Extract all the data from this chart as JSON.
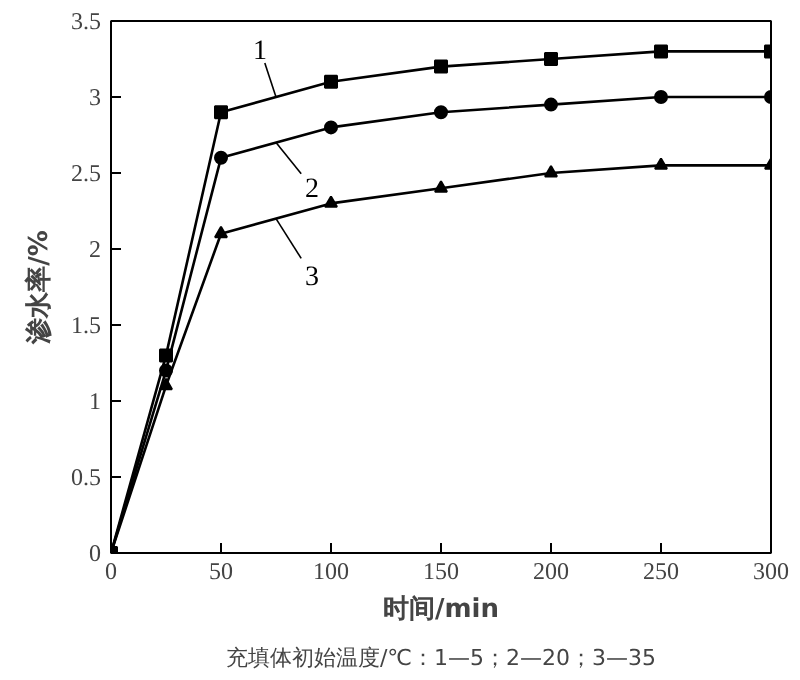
{
  "chart_data": {
    "type": "line",
    "xlabel": "时间/min",
    "ylabel": "渗水率/%",
    "x": [
      0,
      25,
      50,
      100,
      150,
      200,
      250,
      300
    ],
    "series": [
      {
        "name": "1",
        "color": "#000000",
        "marker": "square",
        "values": [
          0,
          1.3,
          2.9,
          3.1,
          3.2,
          3.25,
          3.3,
          3.3
        ]
      },
      {
        "name": "2",
        "color": "#000000",
        "marker": "circle",
        "values": [
          0,
          1.2,
          2.6,
          2.8,
          2.9,
          2.95,
          3.0,
          3.0
        ]
      },
      {
        "name": "3",
        "color": "#000000",
        "marker": "triangle",
        "values": [
          0,
          1.1,
          2.1,
          2.3,
          2.4,
          2.5,
          2.55,
          2.55
        ]
      }
    ],
    "xlim": [
      0,
      300
    ],
    "xticks": [
      0,
      50,
      100,
      150,
      200,
      250,
      300
    ],
    "ylim": [
      0,
      3.5
    ],
    "yticks": [
      0,
      0.5,
      1.0,
      1.5,
      2.0,
      2.5,
      3.0,
      3.5
    ],
    "grid": false,
    "legend": "top left",
    "line_style": "solid",
    "annotations": [
      "充填体初始温度/℃：1—5；2—20；3—35"
    ]
  }
}
